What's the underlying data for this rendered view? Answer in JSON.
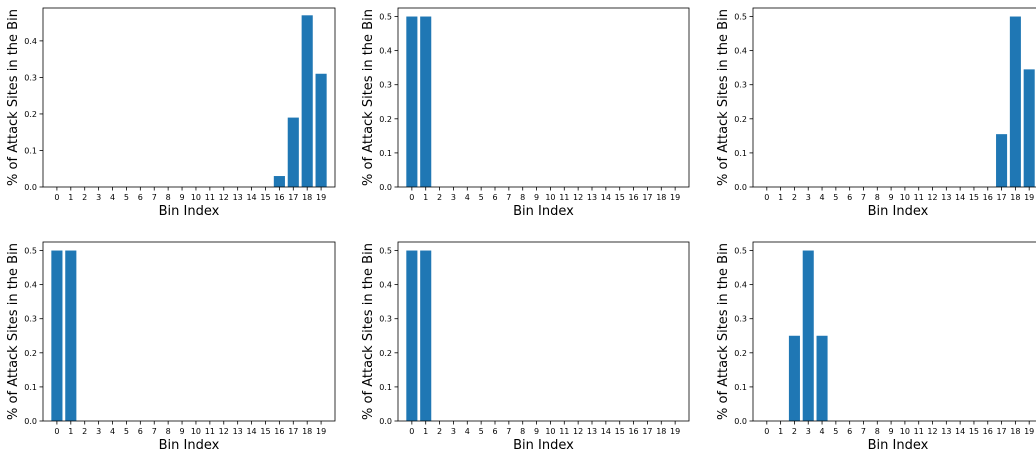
{
  "chart_data": [
    {
      "type": "bar",
      "categories": [
        "0",
        "1",
        "2",
        "3",
        "4",
        "5",
        "6",
        "7",
        "8",
        "9",
        "10",
        "11",
        "12",
        "13",
        "14",
        "15",
        "16",
        "17",
        "18",
        "19"
      ],
      "values": [
        0,
        0,
        0,
        0,
        0,
        0,
        0,
        0,
        0,
        0,
        0,
        0,
        0,
        0,
        0,
        0,
        0.03,
        0.19,
        0.47,
        0.31
      ],
      "xlabel": "Bin Index",
      "ylabel": "% of Attack Sites in the Bin",
      "ylim": [
        0,
        0.49
      ],
      "yticks": [
        "0.0",
        "0.1",
        "0.2",
        "0.3",
        "0.4"
      ],
      "color": "#1f77b4",
      "grid": false
    },
    {
      "type": "bar",
      "categories": [
        "0",
        "1",
        "2",
        "3",
        "4",
        "5",
        "6",
        "7",
        "8",
        "9",
        "10",
        "11",
        "12",
        "13",
        "14",
        "15",
        "16",
        "17",
        "18",
        "19"
      ],
      "values": [
        0.5,
        0.5,
        0,
        0,
        0,
        0,
        0,
        0,
        0,
        0,
        0,
        0,
        0,
        0,
        0,
        0,
        0,
        0,
        0,
        0
      ],
      "xlabel": "Bin Index",
      "ylabel": "% of Attack Sites in the Bin",
      "ylim": [
        0,
        0.525
      ],
      "yticks": [
        "0.0",
        "0.1",
        "0.2",
        "0.3",
        "0.4",
        "0.5"
      ],
      "color": "#1f77b4",
      "grid": false
    },
    {
      "type": "bar",
      "categories": [
        "0",
        "1",
        "2",
        "3",
        "4",
        "5",
        "6",
        "7",
        "8",
        "9",
        "10",
        "11",
        "12",
        "13",
        "14",
        "15",
        "16",
        "17",
        "18",
        "19"
      ],
      "values": [
        0,
        0,
        0,
        0,
        0,
        0,
        0,
        0,
        0,
        0,
        0,
        0,
        0,
        0,
        0,
        0,
        0,
        0.155,
        0.5,
        0.345
      ],
      "xlabel": "Bin Index",
      "ylabel": "% of Attack Sites in the Bin",
      "ylim": [
        0,
        0.525
      ],
      "yticks": [
        "0.0",
        "0.1",
        "0.2",
        "0.3",
        "0.4",
        "0.5"
      ],
      "color": "#1f77b4",
      "grid": false
    },
    {
      "type": "bar",
      "categories": [
        "0",
        "1",
        "2",
        "3",
        "4",
        "5",
        "6",
        "7",
        "8",
        "9",
        "10",
        "11",
        "12",
        "13",
        "14",
        "15",
        "16",
        "17",
        "18",
        "19"
      ],
      "values": [
        0.5,
        0.5,
        0,
        0,
        0,
        0,
        0,
        0,
        0,
        0,
        0,
        0,
        0,
        0,
        0,
        0,
        0,
        0,
        0,
        0
      ],
      "xlabel": "Bin Index",
      "ylabel": "% of Attack Sites in the Bin",
      "ylim": [
        0,
        0.525
      ],
      "yticks": [
        "0.0",
        "0.1",
        "0.2",
        "0.3",
        "0.4",
        "0.5"
      ],
      "color": "#1f77b4",
      "grid": false
    },
    {
      "type": "bar",
      "categories": [
        "0",
        "1",
        "2",
        "3",
        "4",
        "5",
        "6",
        "7",
        "8",
        "9",
        "10",
        "11",
        "12",
        "13",
        "14",
        "15",
        "16",
        "17",
        "18",
        "19"
      ],
      "values": [
        0.5,
        0.5,
        0,
        0,
        0,
        0,
        0,
        0,
        0,
        0,
        0,
        0,
        0,
        0,
        0,
        0,
        0,
        0,
        0,
        0
      ],
      "xlabel": "Bin Index",
      "ylabel": "% of Attack Sites in the Bin",
      "ylim": [
        0,
        0.525
      ],
      "yticks": [
        "0.0",
        "0.1",
        "0.2",
        "0.3",
        "0.4",
        "0.5"
      ],
      "color": "#1f77b4",
      "grid": false
    },
    {
      "type": "bar",
      "categories": [
        "0",
        "1",
        "2",
        "3",
        "4",
        "5",
        "6",
        "7",
        "8",
        "9",
        "10",
        "11",
        "12",
        "13",
        "14",
        "15",
        "16",
        "17",
        "18",
        "19"
      ],
      "values": [
        0,
        0,
        0.25,
        0.5,
        0.25,
        0,
        0,
        0,
        0,
        0,
        0,
        0,
        0,
        0,
        0,
        0,
        0,
        0,
        0,
        0
      ],
      "xlabel": "Bin Index",
      "ylabel": "% of Attack Sites in the Bin",
      "ylim": [
        0,
        0.525
      ],
      "yticks": [
        "0.0",
        "0.1",
        "0.2",
        "0.3",
        "0.4",
        "0.5"
      ],
      "color": "#1f77b4",
      "grid": false
    }
  ]
}
